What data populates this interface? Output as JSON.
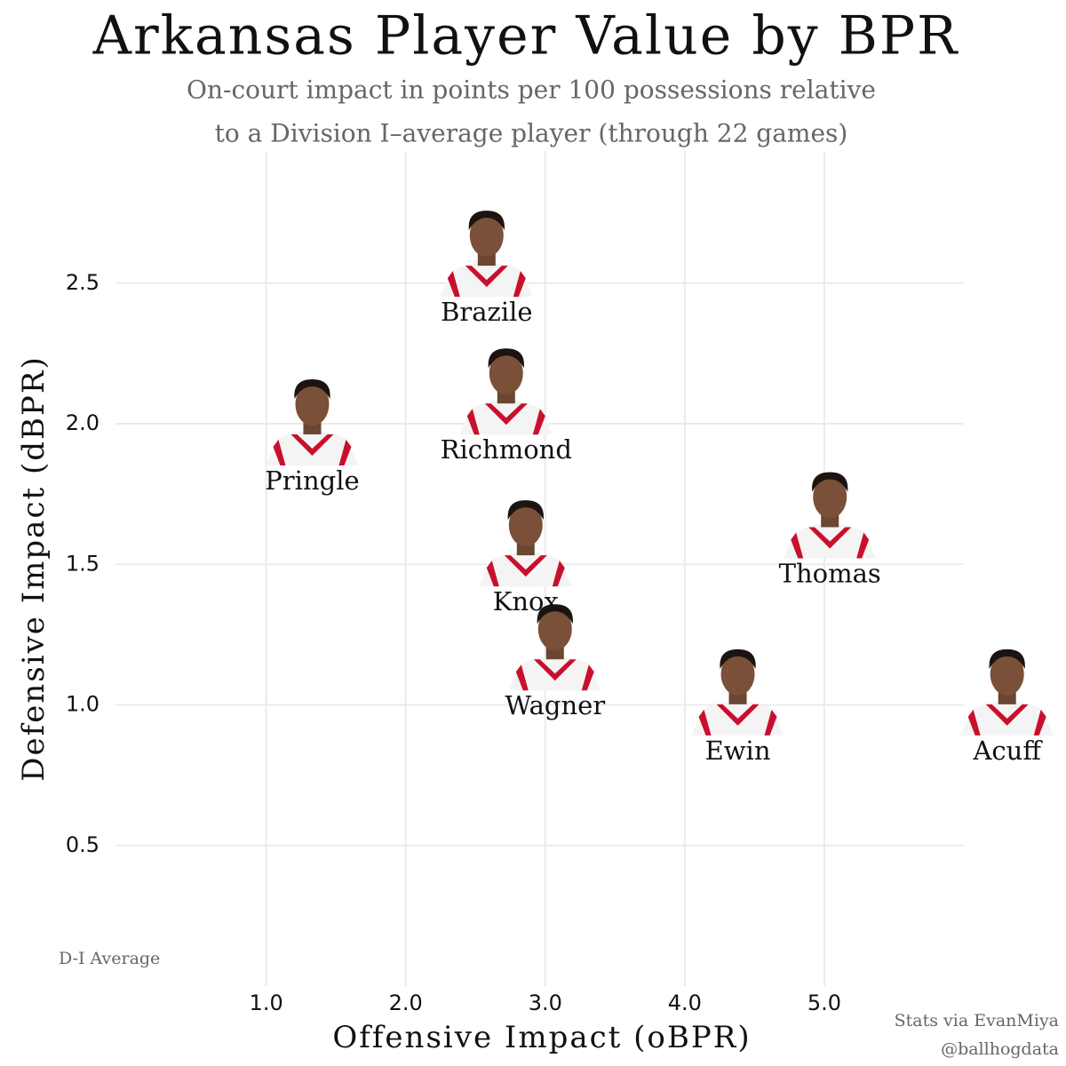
{
  "chart_data": {
    "type": "scatter",
    "title": "Arkansas Player Value by BPR",
    "subtitle": [
      "On-court impact in points per 100 possessions relative",
      "to a Division I–average player (through 22 games)"
    ],
    "xlabel": "Offensive Impact (oBPR)",
    "ylabel": "Defensive Impact (dBPR)",
    "annotations": [
      "D-I Average",
      "Stats via EvanMiya",
      "@ballhogdata"
    ],
    "labels": [
      "Brazile",
      "Richmond",
      "Pringle",
      "Knox",
      "Thomas",
      "Wagner",
      "Ewin",
      "Acuff"
    ],
    "x": [
      2.58,
      2.72,
      1.33,
      2.86,
      5.04,
      3.07,
      4.38,
      6.31
    ],
    "values": [
      2.6,
      2.11,
      2.0,
      1.57,
      1.67,
      1.2,
      1.04,
      1.04
    ],
    "xlim": [
      -0.08,
      6.0
    ],
    "ylim": [
      0,
      2.97
    ],
    "xticks": [
      {
        "value": 1,
        "label": "1.0"
      },
      {
        "value": 2,
        "label": "2.0"
      },
      {
        "value": 3,
        "label": "3.0"
      },
      {
        "value": 4,
        "label": "4.0"
      },
      {
        "value": 5,
        "label": "5.0"
      }
    ],
    "yticks": [
      0.5,
      {
        "value": 1,
        "label": "1.0"
      },
      1.5,
      {
        "value": 2,
        "label": "2.0"
      },
      2.5
    ],
    "grid": true,
    "color": "#c8102e"
  }
}
